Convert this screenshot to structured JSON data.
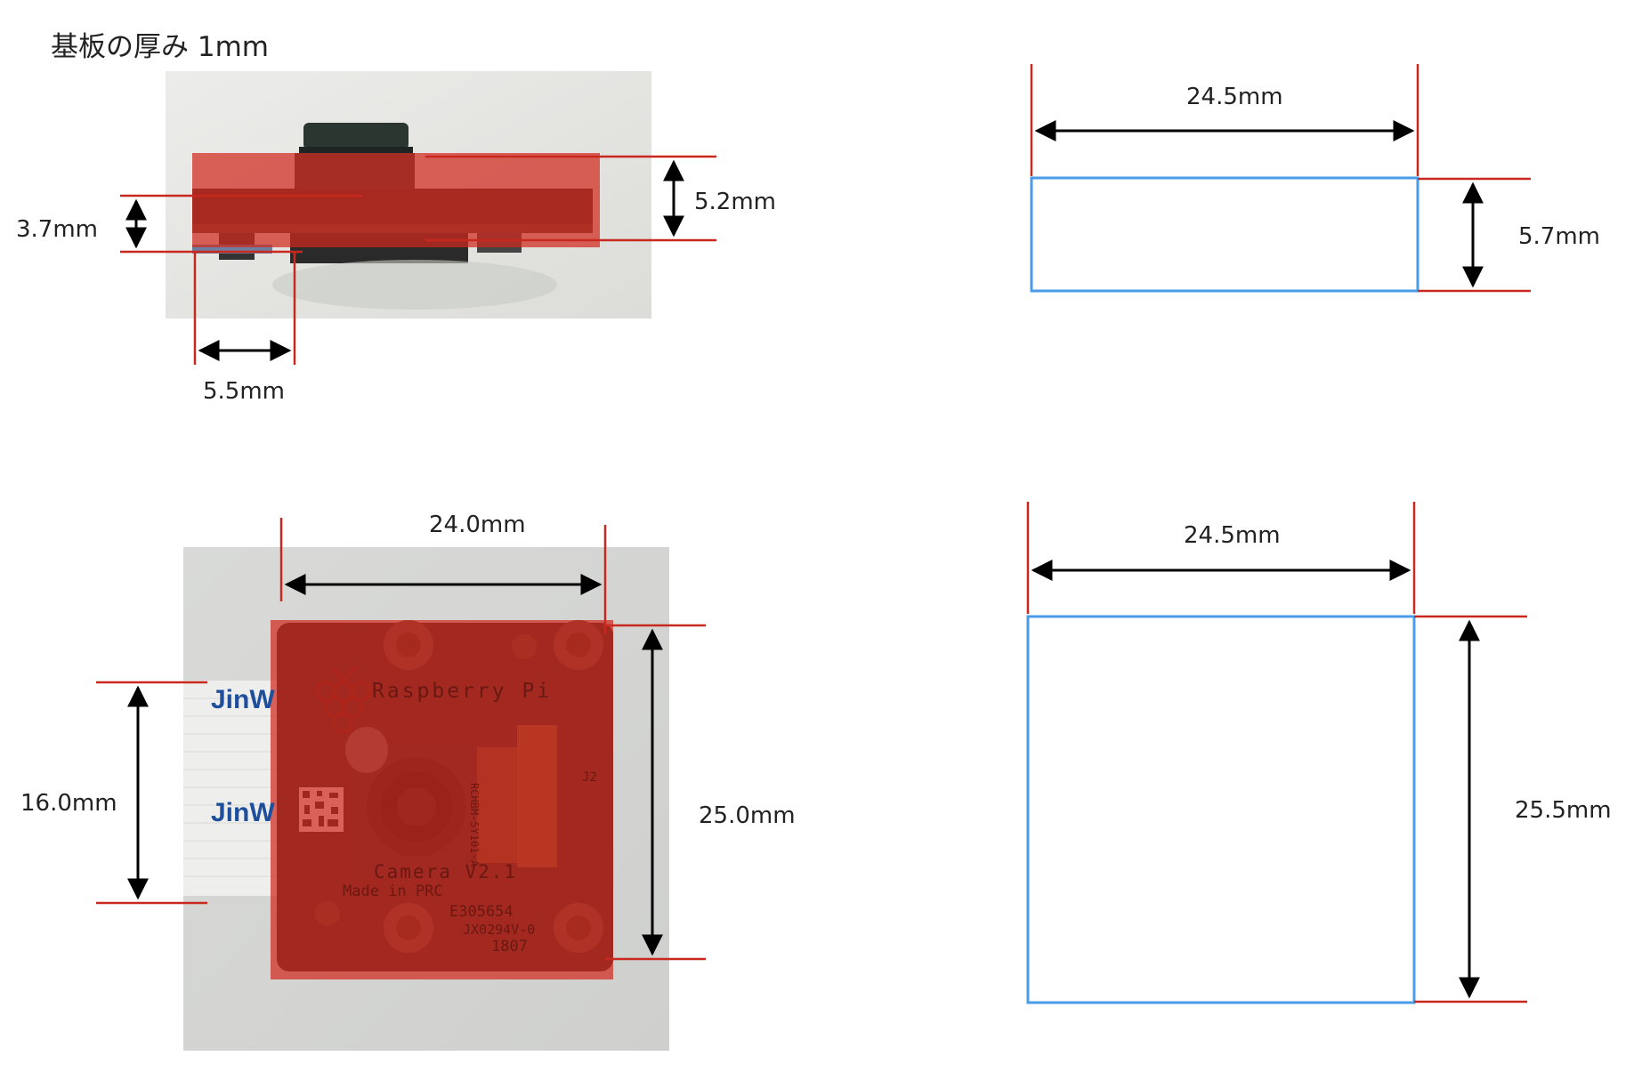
{
  "title": "基板の厚み 1mm",
  "side_view": {
    "label_total_height": "5.2mm",
    "label_board_height": "3.7mm",
    "label_offset_width": "5.5mm"
  },
  "front_view": {
    "label_width": "24.0mm",
    "label_height": "25.0mm",
    "label_cable_width": "16.0mm",
    "board_text": {
      "brand": "Raspberry Pi",
      "model": "Camera V2.1",
      "made_in": "Made in PRC",
      "code1": "E305654",
      "code2": "JX0294V-0",
      "code3": "1807",
      "flex_label": "RCHBM-SY101-A",
      "connector": "J2"
    },
    "cable_text": [
      "JinW",
      "JinW"
    ]
  },
  "box_side": {
    "label_width": "24.5mm",
    "label_height": "5.7mm"
  },
  "box_front": {
    "label_width": "24.5mm",
    "label_height": "25.5mm"
  },
  "colors": {
    "dimension_line": "#c8281e",
    "arrow": "#000000",
    "overlay": "#d12a1e",
    "box_outline": "#4a9be8"
  }
}
